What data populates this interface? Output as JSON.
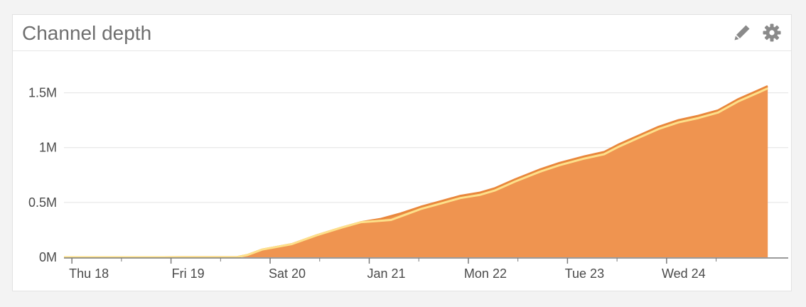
{
  "panel": {
    "title": "Channel depth",
    "tools": [
      {
        "name": "edit",
        "icon": "pencil-icon"
      },
      {
        "name": "settings",
        "icon": "gear-icon"
      }
    ]
  },
  "colors": {
    "area_fill": "#ef9450",
    "top_line": "#e9873c",
    "inner_line": "#fde08a",
    "grid": "#e3e3e3",
    "axis": "#7a7a7a",
    "icon": "#8a8a8a"
  },
  "chart_data": {
    "type": "area",
    "title": "",
    "xlabel": "",
    "ylabel": "",
    "ylim": [
      0,
      1.75
    ],
    "y_unit": "M",
    "y_ticks": [
      {
        "value": 0,
        "label": "0M"
      },
      {
        "value": 0.5,
        "label": "0.5M"
      },
      {
        "value": 1.0,
        "label": "1M"
      },
      {
        "value": 1.5,
        "label": "1.5M"
      }
    ],
    "x_range": [
      0,
      7.25
    ],
    "x_ticks": [
      {
        "value": 0.08,
        "label": "Thu 18"
      },
      {
        "value": 1.08,
        "label": "Fri 19"
      },
      {
        "value": 2.08,
        "label": "Sat 20"
      },
      {
        "value": 3.08,
        "label": "Jan 21"
      },
      {
        "value": 4.08,
        "label": "Mon 22"
      },
      {
        "value": 5.08,
        "label": "Tue 23"
      },
      {
        "value": 6.08,
        "label": "Wed 24"
      }
    ],
    "minor_x_ticks": [
      0.58,
      1.58,
      2.58,
      3.58,
      4.58,
      5.58,
      6.58
    ],
    "grid": true,
    "series": [
      {
        "points": [
          [
            0.0,
            0.0
          ],
          [
            1.0,
            0.0
          ],
          [
            1.75,
            0.002
          ],
          [
            1.85,
            0.02
          ],
          [
            2.0,
            0.07
          ],
          [
            2.3,
            0.12
          ],
          [
            2.55,
            0.2
          ],
          [
            2.8,
            0.27
          ],
          [
            3.0,
            0.32
          ],
          [
            3.2,
            0.35
          ],
          [
            3.4,
            0.4
          ],
          [
            3.6,
            0.46
          ],
          [
            3.8,
            0.51
          ],
          [
            4.0,
            0.56
          ],
          [
            4.2,
            0.59
          ],
          [
            4.35,
            0.63
          ],
          [
            4.55,
            0.71
          ],
          [
            4.8,
            0.8
          ],
          [
            5.0,
            0.86
          ],
          [
            5.25,
            0.92
          ],
          [
            5.45,
            0.96
          ],
          [
            5.6,
            1.03
          ],
          [
            5.8,
            1.11
          ],
          [
            6.0,
            1.19
          ],
          [
            6.2,
            1.25
          ],
          [
            6.4,
            1.29
          ],
          [
            6.6,
            1.34
          ],
          [
            6.8,
            1.44
          ],
          [
            7.0,
            1.52
          ],
          [
            7.1,
            1.56
          ]
        ]
      },
      {
        "points": [
          [
            0.0,
            0.0
          ],
          [
            1.0,
            0.0
          ],
          [
            1.75,
            0.002
          ],
          [
            1.85,
            0.02
          ],
          [
            2.0,
            0.07
          ],
          [
            2.3,
            0.12
          ],
          [
            2.55,
            0.2
          ],
          [
            2.8,
            0.27
          ],
          [
            3.0,
            0.32
          ],
          [
            3.15,
            0.33
          ],
          [
            3.3,
            0.34
          ],
          [
            3.45,
            0.39
          ],
          [
            3.6,
            0.44
          ],
          [
            3.8,
            0.49
          ],
          [
            4.0,
            0.54
          ],
          [
            4.2,
            0.57
          ],
          [
            4.35,
            0.61
          ],
          [
            4.55,
            0.69
          ],
          [
            4.8,
            0.78
          ],
          [
            5.0,
            0.84
          ],
          [
            5.25,
            0.9
          ],
          [
            5.45,
            0.94
          ],
          [
            5.6,
            1.01
          ],
          [
            5.8,
            1.09
          ],
          [
            6.0,
            1.17
          ],
          [
            6.2,
            1.23
          ],
          [
            6.4,
            1.27
          ],
          [
            6.6,
            1.32
          ],
          [
            6.8,
            1.42
          ],
          [
            7.0,
            1.5
          ],
          [
            7.1,
            1.54
          ]
        ]
      }
    ]
  }
}
